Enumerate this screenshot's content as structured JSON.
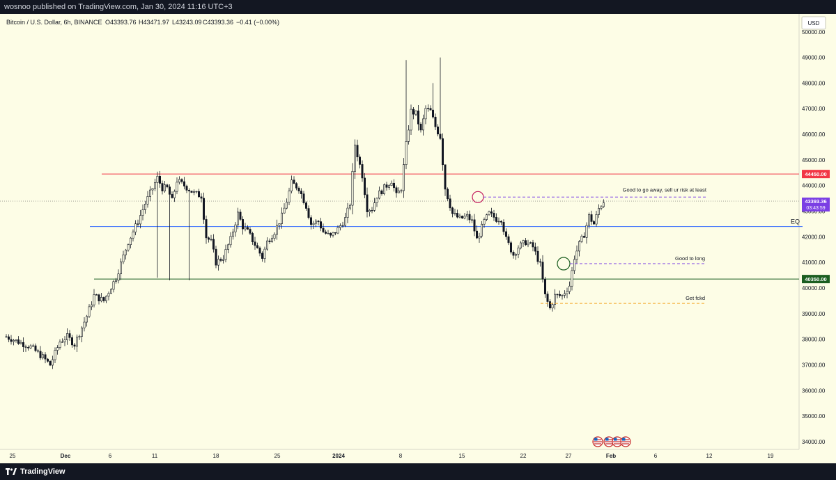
{
  "header": {
    "published": "wosnoo published on TradingView.com, Jan 30, 2024 11:16 UTC+3"
  },
  "footer": {
    "brand": "TradingView"
  },
  "legend": {
    "symbol": "Bitcoin / U.S. Dollar, 6h, BINANCE",
    "open": "O43393.76",
    "high": "H43471.97",
    "low": "L43243.09",
    "close": "C43393.36",
    "change": "−0.41 (−0.00%)"
  },
  "currency_button": "USD",
  "colors": {
    "background": "#fdfde6",
    "resistance": "#f23645",
    "eq": "#2962ff",
    "support": "#1b5e20",
    "price_label": "#7b3fe4",
    "dashed_orange": "#f5a623"
  },
  "chart_data": {
    "type": "candlestick",
    "title": "Bitcoin / U.S. Dollar, 6h, BINANCE",
    "ylim": [
      33700,
      50700
    ],
    "y_ticks": [
      "50000.00",
      "49000.00",
      "48000.00",
      "47000.00",
      "46000.00",
      "45000.00",
      "44000.00",
      "43000.00",
      "42000.00",
      "41000.00",
      "40000.00",
      "39000.00",
      "38000.00",
      "37000.00",
      "36000.00",
      "35000.00",
      "34000.00"
    ],
    "x_ticks": [
      "25",
      "Dec",
      "6",
      "11",
      "18",
      "25",
      "2024",
      "8",
      "15",
      "22",
      "27",
      "Feb",
      "6",
      "12",
      "19"
    ],
    "horizontal_levels": [
      {
        "name": "resistance",
        "value": 44450,
        "label": "44450.00"
      },
      {
        "name": "support",
        "value": 40350,
        "label": "40350.00"
      },
      {
        "name": "eq",
        "value": 42400,
        "text": "EQ"
      }
    ],
    "last_price": {
      "value": 43393.36,
      "label": "43393.36",
      "countdown": "03:43:59"
    },
    "annotations": [
      {
        "text": "Good to go away, sell ur risk at least",
        "value": 43550
      },
      {
        "text": "Good to long",
        "value": 40950
      },
      {
        "text": "Get fckd",
        "value": 39400
      }
    ],
    "price_path": [
      [
        0,
        38100
      ],
      [
        5,
        37900
      ],
      [
        10,
        37700
      ],
      [
        15,
        37300
      ],
      [
        18,
        37000
      ],
      [
        22,
        37900
      ],
      [
        25,
        38100
      ],
      [
        28,
        37800
      ],
      [
        33,
        38900
      ],
      [
        36,
        39700
      ],
      [
        40,
        39500
      ],
      [
        45,
        40400
      ],
      [
        50,
        41800
      ],
      [
        54,
        42600
      ],
      [
        57,
        43300
      ],
      [
        60,
        43900
      ],
      [
        62,
        44300
      ],
      [
        64,
        43900
      ],
      [
        66,
        43900
      ],
      [
        68,
        43400
      ],
      [
        70,
        44200
      ],
      [
        73,
        44000
      ],
      [
        77,
        43700
      ],
      [
        80,
        43600
      ],
      [
        82,
        42000
      ],
      [
        84,
        41800
      ],
      [
        86,
        41000
      ],
      [
        89,
        41200
      ],
      [
        92,
        41900
      ],
      [
        95,
        42900
      ],
      [
        97,
        42400
      ],
      [
        99,
        42200
      ],
      [
        102,
        41700
      ],
      [
        105,
        41200
      ],
      [
        107,
        41800
      ],
      [
        110,
        42200
      ],
      [
        113,
        42800
      ],
      [
        115,
        43400
      ],
      [
        117,
        44100
      ],
      [
        120,
        43900
      ],
      [
        123,
        43200
      ],
      [
        125,
        42500
      ],
      [
        128,
        42600
      ],
      [
        130,
        42200
      ],
      [
        133,
        42000
      ],
      [
        136,
        42300
      ],
      [
        139,
        42700
      ],
      [
        141,
        43300
      ],
      [
        143,
        45600
      ],
      [
        146,
        44400
      ],
      [
        148,
        43100
      ],
      [
        150,
        43100
      ],
      [
        152,
        43600
      ],
      [
        155,
        43900
      ],
      [
        158,
        44200
      ],
      [
        160,
        43600
      ],
      [
        162,
        43900
      ],
      [
        164,
        45600
      ],
      [
        166,
        46900
      ],
      [
        168,
        46800
      ],
      [
        170,
        46100
      ],
      [
        172,
        47000
      ],
      [
        174,
        46900
      ],
      [
        176,
        46300
      ],
      [
        178,
        45900
      ],
      [
        180,
        43900
      ],
      [
        183,
        42900
      ],
      [
        186,
        42700
      ],
      [
        189,
        42800
      ],
      [
        191,
        42600
      ],
      [
        193,
        41900
      ],
      [
        196,
        42600
      ],
      [
        198,
        42900
      ],
      [
        201,
        42700
      ],
      [
        203,
        42700
      ],
      [
        205,
        41900
      ],
      [
        208,
        41300
      ],
      [
        210,
        41600
      ],
      [
        213,
        41800
      ],
      [
        216,
        41600
      ],
      [
        219,
        40900
      ],
      [
        221,
        39700
      ],
      [
        223,
        39200
      ],
      [
        225,
        39700
      ],
      [
        228,
        39700
      ],
      [
        231,
        40100
      ],
      [
        233,
        41200
      ],
      [
        235,
        41700
      ],
      [
        237,
        42100
      ],
      [
        239,
        42800
      ],
      [
        241,
        42500
      ],
      [
        243,
        43100
      ],
      [
        245,
        43393
      ]
    ]
  }
}
